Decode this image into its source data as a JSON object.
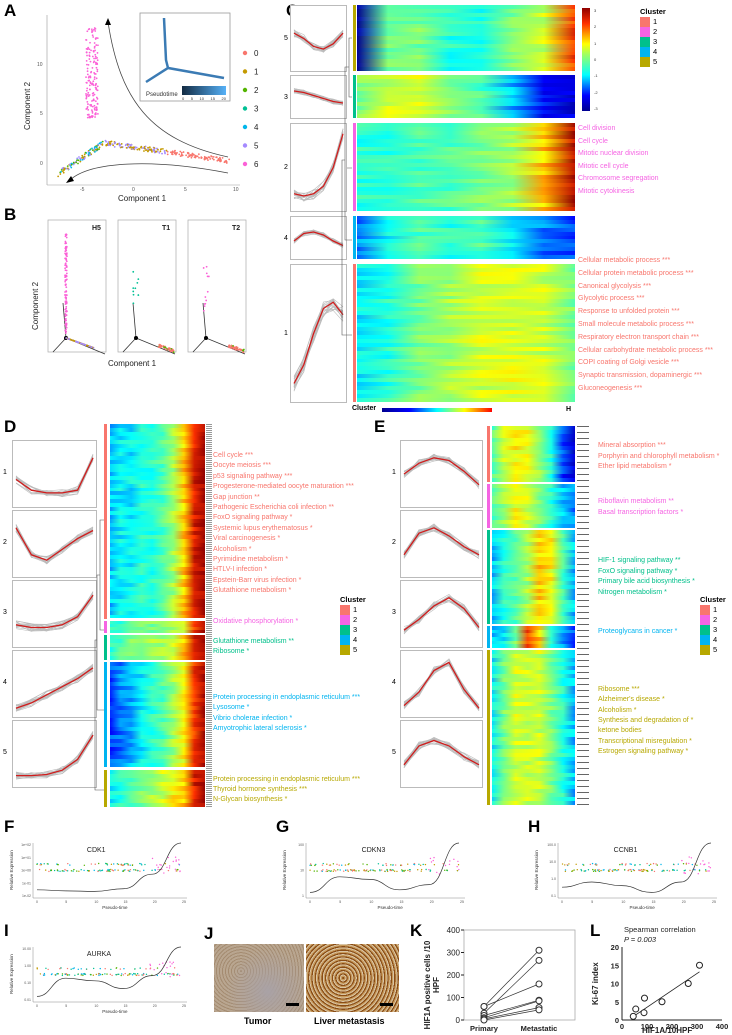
{
  "colors": {
    "c0": "#f8766d",
    "c1": "#c49a00",
    "c2": "#53b400",
    "c3": "#00c094",
    "c4": "#00b6eb",
    "c5": "#a58aff",
    "c6": "#fb61d7",
    "k1": "#f8766d",
    "k2": "#f564e3",
    "k3": "#00c08b",
    "k4": "#00b4f0",
    "k5": "#b7a800"
  },
  "panel_labels": [
    "A",
    "B",
    "C",
    "D",
    "E",
    "F",
    "G",
    "H",
    "I",
    "J",
    "K",
    "L"
  ],
  "chart_data": [
    {
      "panel": "A",
      "type": "scatter",
      "xlabel": "Component 1",
      "ylabel": "Component 2",
      "xticks": [
        "-5",
        "0",
        "5",
        "10"
      ],
      "yticks": [
        "0",
        "5",
        "10"
      ],
      "legend": [
        "0",
        "1",
        "2",
        "3",
        "4",
        "5",
        "6"
      ],
      "inset": {
        "legend_title": "Pseudotime",
        "ticks": [
          "0",
          "5",
          "10",
          "15",
          "20"
        ]
      }
    },
    {
      "panel": "B",
      "type": "scatter",
      "xlabel": "Component 1",
      "ylabel": "Component 2",
      "facets": [
        "H5",
        "T1",
        "T2"
      ],
      "xticks": [
        "-5",
        "0",
        "5",
        "10"
      ],
      "yticks": [
        "0",
        "5",
        "10"
      ]
    },
    {
      "panel": "C",
      "type": "heatmap",
      "cluster_order": [
        "5",
        "3",
        "2",
        "4",
        "1"
      ],
      "colorbar_ticks": [
        "3",
        "2",
        "1",
        "0",
        "-1",
        "-2",
        "-3"
      ],
      "legend_title": "Cluster",
      "legend": [
        "1",
        "2",
        "3",
        "4",
        "5"
      ],
      "bottom_label": "Cluster",
      "bottom_right_label": "H",
      "terms": [
        {
          "cluster": 2,
          "items": [
            "Cell division",
            "Cell cycle",
            "Mitotic nuclear division",
            "Mitotic cell cycle",
            "Chromosome segregation",
            "Mitotic cytokinesis"
          ]
        },
        {
          "cluster": 1,
          "items": [
            "Cellular metabolic process ***",
            "Cellular protein metabolic process ***",
            "Canonical glycolysis ***",
            "Glycolytic process ***",
            "Response to unfolded protein ***",
            "Small molecule metabolic process ***",
            "Respiratory electron transport chain ***",
            "Cellular carbohydrate metabolic process ***",
            "COPI coating of Golgi vesicle ***",
            "Synaptic transmission, dopaminergic ***",
            "Gluconeogenesis ***"
          ]
        }
      ]
    },
    {
      "panel": "D",
      "type": "heatmap",
      "cluster_order": [
        "1",
        "2",
        "3",
        "4",
        "5"
      ],
      "legend_title": "Cluster",
      "legend": [
        "1",
        "2",
        "3",
        "4",
        "5"
      ],
      "terms": [
        {
          "cluster": 1,
          "items": [
            "Cell cycle ***",
            "Oocyte meiosis ***",
            "p53 signaling pathway ***",
            "Progesterone-mediated oocyte maturation ***",
            "Gap junction **",
            "Pathogenic Escherichia coli infection  **",
            "FoxO signaling pathway *",
            "Systemic lupus erythematosus *",
            "Viral carcinogenesis *",
            "Alcoholism *",
            "Pyrimidine metabolism *",
            "HTLV-I infection *",
            "Epstein-Barr virus infection *",
            "Glutathione metabolism *"
          ]
        },
        {
          "cluster": 2,
          "items": [
            "Oxidative phosphorylation *"
          ]
        },
        {
          "cluster": 3,
          "items": [
            "Glutathione metabolism **",
            "Ribosome *"
          ]
        },
        {
          "cluster": 4,
          "items": [
            "Protein processing in endoplasmic reticulum ***",
            "Lysosome *",
            "Vibrio cholerae infection *",
            "Amyotrophic lateral sclerosis *"
          ]
        },
        {
          "cluster": 5,
          "items": [
            "Protein processing in endoplasmic reticulum ***",
            "Thyroid hormone synthesis ***",
            "N-Glycan biosynthesis *"
          ]
        }
      ]
    },
    {
      "panel": "E",
      "type": "heatmap",
      "cluster_order": [
        "1",
        "2",
        "3",
        "4",
        "5"
      ],
      "legend_title": "Cluster",
      "legend": [
        "1",
        "2",
        "3",
        "4",
        "5"
      ],
      "terms": [
        {
          "cluster": 1,
          "items": [
            "Mineral absorption ***",
            "Porphyrin and chlorophyll metabolism *",
            "Ether lipid metabolism *"
          ]
        },
        {
          "cluster": 2,
          "items": [
            "Riboflavin metabolism **",
            "Basal transcription factors *"
          ]
        },
        {
          "cluster": 3,
          "items": [
            "HIF-1 signaling pathway **",
            "FoxO signaling pathway  *",
            "Primary bile acid biosynthesis *",
            "Nitrogen metabolism *"
          ]
        },
        {
          "cluster": 4,
          "items": [
            "Proteoglycans in cancer *"
          ]
        },
        {
          "cluster": 5,
          "items": [
            "Ribosome ***",
            "Alzheimer's disease *",
            "Alcoholism *",
            "Synthesis and degradation of  *",
            "ketone bodies",
            "Transcriptional misregulation *",
            "Estrogen signaling pathway *"
          ]
        }
      ]
    },
    {
      "panel": "F",
      "type": "scatter",
      "title": "CDK1",
      "xlabel": "Pseudo-time",
      "ylabel": "Relative Expression",
      "xticks": [
        "0",
        "5",
        "10",
        "15",
        "20",
        "25"
      ],
      "yticks": [
        "1e+02",
        "1e+01",
        "1e+00",
        "1e-01",
        "1e-02"
      ]
    },
    {
      "panel": "G",
      "type": "scatter",
      "title": "CDKN3",
      "xlabel": "Pseudo-time",
      "ylabel": "Relative Expression",
      "xticks": [
        "0",
        "5",
        "10",
        "15",
        "20",
        "25"
      ],
      "yticks": [
        "100",
        "10",
        "1"
      ]
    },
    {
      "panel": "H",
      "type": "scatter",
      "title": "CCNB1",
      "xlabel": "Pseudo-time",
      "ylabel": "Relative Expression",
      "xticks": [
        "0",
        "5",
        "10",
        "15",
        "20",
        "25"
      ],
      "yticks": [
        "100.0",
        "10.0",
        "1.0",
        "0.1"
      ]
    },
    {
      "panel": "I",
      "type": "scatter",
      "title": "AURKA",
      "xlabel": "Pseudo-time",
      "ylabel": "Relative Expression",
      "xticks": [
        "0",
        "5",
        "10",
        "15",
        "20",
        "25"
      ],
      "yticks": [
        "10.00",
        "1.00",
        "0.10",
        "0.01"
      ]
    },
    {
      "panel": "K",
      "type": "line",
      "categories": [
        "Primary",
        "Metastatic"
      ],
      "ylabel": "HIF1A positive cells /10 HPF",
      "ylim": [
        0,
        400
      ],
      "yticks": [
        "0",
        "100",
        "200",
        "300",
        "400"
      ],
      "pairs": [
        [
          60,
          310
        ],
        [
          30,
          265
        ],
        [
          60,
          160
        ],
        [
          20,
          88
        ],
        [
          10,
          85
        ],
        [
          5,
          55
        ],
        [
          0,
          45
        ]
      ]
    },
    {
      "panel": "L",
      "type": "scatter",
      "title": "Spearman correlation",
      "subtitle": "P = 0.003",
      "xlabel": "HIF1A/10HPF",
      "ylabel": "Ki-67 index",
      "xlim": [
        0,
        400
      ],
      "ylim": [
        0,
        20
      ],
      "xticks": [
        "0",
        "100",
        "200",
        "300",
        "400"
      ],
      "yticks": [
        "0",
        "5",
        "10",
        "15",
        "20"
      ],
      "x": [
        45,
        55,
        88,
        90,
        160,
        265,
        310
      ],
      "y": [
        1,
        3,
        2,
        6,
        5,
        10,
        15
      ]
    }
  ],
  "panel_j": {
    "labels": [
      "Tumor",
      "Liver metastasis"
    ]
  }
}
